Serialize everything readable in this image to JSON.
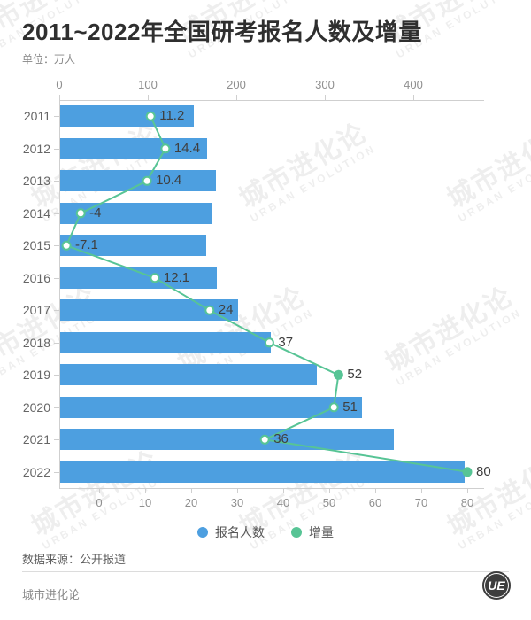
{
  "header": {
    "title": "2011~2022年全国研考报名人数及增量",
    "unit_label": "单位：万人"
  },
  "legend": {
    "items": [
      {
        "label": "报名人数",
        "color": "#4D9FE0"
      },
      {
        "label": "增量",
        "color": "#57C495"
      }
    ]
  },
  "footer": {
    "source": "数据来源：公开报道",
    "brand": "城市进化论",
    "logo_text": "UE"
  },
  "watermark": {
    "line1": "城市进化论",
    "line2": "URBAN EVOLUTION"
  },
  "chart_data": {
    "type": "bar",
    "subtype": "horizontal-bar-with-line",
    "title": "2011~2022年全国研考报名人数及增量",
    "unit": "万人",
    "categories": [
      "2011",
      "2012",
      "2013",
      "2014",
      "2015",
      "2016",
      "2017",
      "2018",
      "2019",
      "2020",
      "2021",
      "2022"
    ],
    "series": [
      {
        "name": "报名人数",
        "type": "bar",
        "axis": "top",
        "color": "#4D9FE0",
        "values": [
          151.1,
          165.6,
          176,
          172,
          164.9,
          177,
          201,
          238,
          290,
          341,
          377,
          457
        ]
      },
      {
        "name": "增量",
        "type": "line",
        "axis": "bottom",
        "color": "#57C495",
        "values": [
          11.2,
          14.4,
          10.4,
          -4,
          -7.1,
          12.1,
          24,
          37,
          52,
          51,
          36,
          80
        ],
        "data_labels_shown": true
      }
    ],
    "top_axis": {
      "ticks": [
        0,
        100,
        200,
        300,
        400
      ],
      "max": 480
    },
    "bottom_axis": {
      "ticks": [
        0,
        10,
        20,
        30,
        40,
        50,
        60,
        70,
        80
      ],
      "min": -8.65,
      "max": 83.65
    },
    "grid": false,
    "legend_position": "bottom"
  }
}
